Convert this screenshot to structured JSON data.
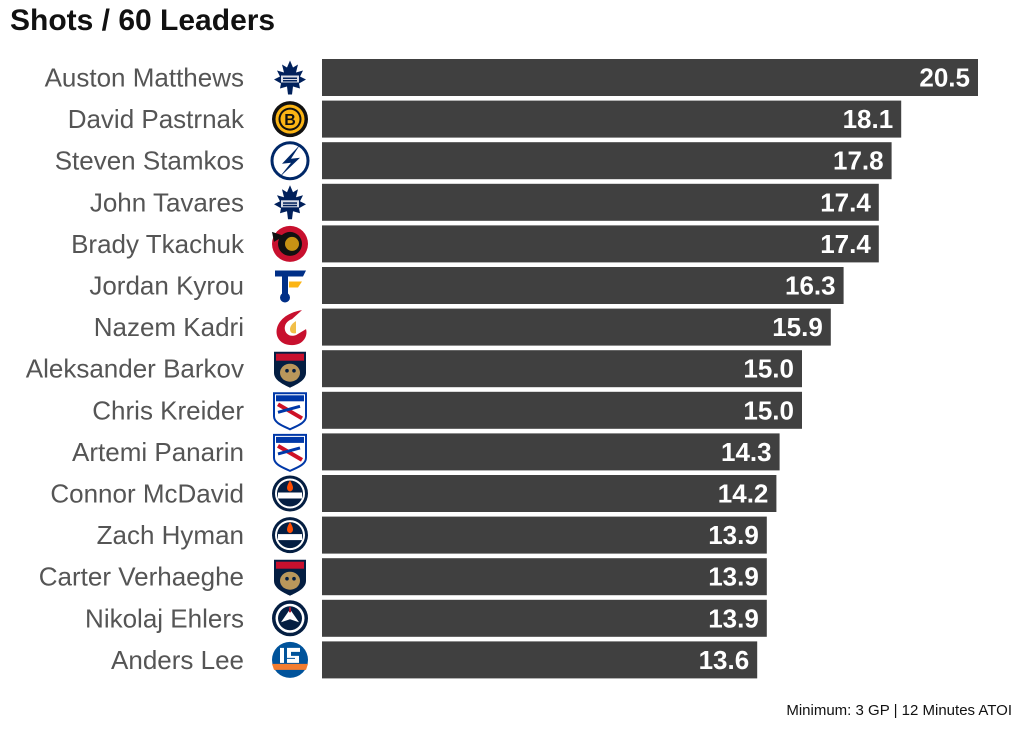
{
  "chart_data": {
    "type": "bar",
    "orientation": "horizontal",
    "title": "Shots / 60 Leaders",
    "caption": "Minimum: 3 GP | 12 Minutes ATOI",
    "xlabel": "",
    "ylabel": "",
    "xlim": [
      0,
      20.5
    ],
    "grid": false,
    "legend": "none",
    "bar_color": "#404040",
    "label_color": "#ffffff",
    "name_color": "#555555",
    "categories": [
      "Auston Matthews",
      "David Pastrnak",
      "Steven Stamkos",
      "John Tavares",
      "Brady Tkachuk",
      "Jordan Kyrou",
      "Nazem Kadri",
      "Aleksander Barkov",
      "Chris Kreider",
      "Artemi Panarin",
      "Connor McDavid",
      "Zach Hyman",
      "Carter Verhaeghe",
      "Nikolaj Ehlers",
      "Anders Lee"
    ],
    "values": [
      20.5,
      18.1,
      17.8,
      17.4,
      17.4,
      16.3,
      15.9,
      15.0,
      15.0,
      14.3,
      14.2,
      13.9,
      13.9,
      13.9,
      13.6
    ],
    "value_labels": [
      "20.5",
      "18.1",
      "17.8",
      "17.4",
      "17.4",
      "16.3",
      "15.9",
      "15.0",
      "15.0",
      "14.3",
      "14.2",
      "13.9",
      "13.9",
      "13.9",
      "13.6"
    ],
    "team_logos": [
      "maple-leafs-logo-icon",
      "bruins-logo-icon",
      "lightning-logo-icon",
      "maple-leafs-logo-icon",
      "senators-logo-icon",
      "blues-logo-icon",
      "flames-logo-icon",
      "panthers-logo-icon",
      "rangers-logo-icon",
      "rangers-logo-icon",
      "oilers-logo-icon",
      "oilers-logo-icon",
      "panthers-logo-icon",
      "jets-logo-icon",
      "islanders-logo-icon"
    ]
  }
}
